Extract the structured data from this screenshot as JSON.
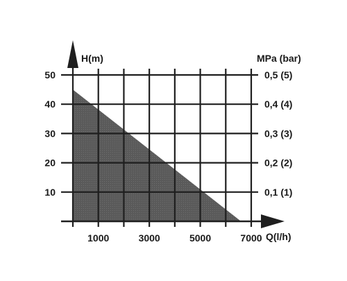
{
  "chart_data": {
    "type": "area",
    "title": "",
    "xlabel": "Q(l/h)",
    "ylabel": "H(m)",
    "y2label": "MPa (bar)",
    "xlim": [
      0,
      7000
    ],
    "ylim": [
      0,
      50
    ],
    "grid": true,
    "grid_x_values": [
      0,
      1000,
      2000,
      3000,
      4000,
      5000,
      6000,
      7000
    ],
    "grid_y_values": [
      10,
      20,
      30,
      40,
      50
    ],
    "x_ticks": [
      {
        "value": 1000,
        "label": "1000"
      },
      {
        "value": 3000,
        "label": "3000"
      },
      {
        "value": 5000,
        "label": "5000"
      },
      {
        "value": 7000,
        "label": "7000"
      }
    ],
    "y_ticks": [
      {
        "value": 10,
        "label": "10"
      },
      {
        "value": 20,
        "label": "20"
      },
      {
        "value": 30,
        "label": "30"
      },
      {
        "value": 40,
        "label": "40"
      },
      {
        "value": 50,
        "label": "50"
      }
    ],
    "y2_ticks": [
      {
        "value": 10,
        "label": "0,1 (1)"
      },
      {
        "value": 20,
        "label": "0,2 (2)"
      },
      {
        "value": 30,
        "label": "0,3 (3)"
      },
      {
        "value": 40,
        "label": "0,4 (4)"
      },
      {
        "value": 50,
        "label": "0,5 (5)"
      }
    ],
    "series": [
      {
        "x": [
          0,
          0,
          6600
        ],
        "y": [
          0,
          45,
          0
        ],
        "fill_color": "#5c5c5c"
      }
    ]
  },
  "colors": {
    "fill": "#5c5c5c",
    "grid": "#1f1f1f",
    "text": "#1a1a1a"
  }
}
